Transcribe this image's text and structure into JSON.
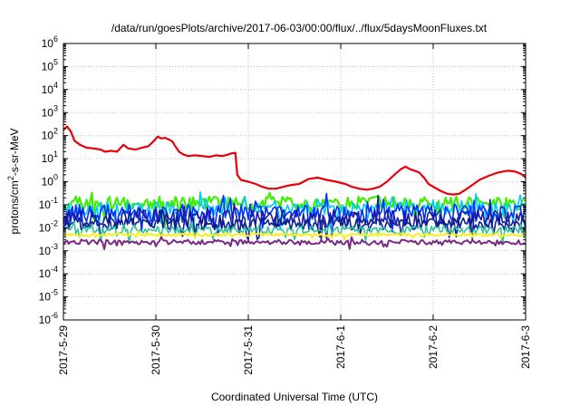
{
  "chart_data": {
    "type": "line",
    "title": "/data/run/goesPlots/archive/2017-06-03/00:00/flux/../flux/5daysMoonFluxes.txt",
    "xlabel": "Coordinated Universal Time (UTC)",
    "ylabel": "protons/cm²-s-sr-MeV",
    "ylabel_parts": {
      "pre": "protons/cm",
      "sup": "2",
      "post": "-s-sr-MeV"
    },
    "y_scale": "log",
    "ylim": [
      1e-06,
      1000000.0
    ],
    "y_ticks": [
      {
        "value": 1e-06,
        "base": "10",
        "exp": "-6"
      },
      {
        "value": 1e-05,
        "base": "10",
        "exp": "-5"
      },
      {
        "value": 0.0001,
        "base": "10",
        "exp": "-4"
      },
      {
        "value": 0.001,
        "base": "10",
        "exp": "-3"
      },
      {
        "value": 0.01,
        "base": "10",
        "exp": "-2"
      },
      {
        "value": 0.1,
        "base": "10",
        "exp": "-1"
      },
      {
        "value": 1.0,
        "base": "10",
        "exp": "0"
      },
      {
        "value": 10.0,
        "base": "10",
        "exp": "1"
      },
      {
        "value": 100.0,
        "base": "10",
        "exp": "2"
      },
      {
        "value": 1000.0,
        "base": "10",
        "exp": "3"
      },
      {
        "value": 10000.0,
        "base": "10",
        "exp": "4"
      },
      {
        "value": 100000.0,
        "base": "10",
        "exp": "5"
      },
      {
        "value": 1000000.0,
        "base": "10",
        "exp": "6"
      }
    ],
    "xlim": [
      "2017-05-29",
      "2017-06-03"
    ],
    "x_ticks": [
      "2017-5-29",
      "2017-5-30",
      "2017-5-31",
      "2017-6-1",
      "2017-6-2",
      "2017-6-3"
    ],
    "grid": true,
    "legend": "none",
    "series": [
      {
        "color": "#e8000b",
        "line_width": 2.2,
        "points": [
          [
            0.0,
            180
          ],
          [
            0.04,
            250
          ],
          [
            0.08,
            150
          ],
          [
            0.12,
            60
          ],
          [
            0.18,
            40
          ],
          [
            0.25,
            30
          ],
          [
            0.32,
            28
          ],
          [
            0.4,
            25
          ],
          [
            0.45,
            20
          ],
          [
            0.52,
            22
          ],
          [
            0.58,
            20
          ],
          [
            0.65,
            40
          ],
          [
            0.7,
            28
          ],
          [
            0.78,
            25
          ],
          [
            0.85,
            30
          ],
          [
            0.92,
            35
          ],
          [
            0.98,
            60
          ],
          [
            1.02,
            90
          ],
          [
            1.06,
            75
          ],
          [
            1.1,
            80
          ],
          [
            1.15,
            65
          ],
          [
            1.18,
            55
          ],
          [
            1.2,
            40
          ],
          [
            1.25,
            20
          ],
          [
            1.3,
            15
          ],
          [
            1.35,
            13
          ],
          [
            1.42,
            14
          ],
          [
            1.5,
            13
          ],
          [
            1.58,
            12
          ],
          [
            1.65,
            14
          ],
          [
            1.72,
            13
          ],
          [
            1.78,
            15
          ],
          [
            1.82,
            17
          ],
          [
            1.86,
            18
          ],
          [
            1.88,
            2
          ],
          [
            1.92,
            1.2
          ],
          [
            2.0,
            1.0
          ],
          [
            2.08,
            0.8
          ],
          [
            2.15,
            0.6
          ],
          [
            2.22,
            0.5
          ],
          [
            2.3,
            0.5
          ],
          [
            2.38,
            0.6
          ],
          [
            2.45,
            0.7
          ],
          [
            2.55,
            0.8
          ],
          [
            2.65,
            1.3
          ],
          [
            2.75,
            1.5
          ],
          [
            2.85,
            1.2
          ],
          [
            2.95,
            1.0
          ],
          [
            3.05,
            0.8
          ],
          [
            3.12,
            0.6
          ],
          [
            3.2,
            0.5
          ],
          [
            3.28,
            0.45
          ],
          [
            3.35,
            0.5
          ],
          [
            3.42,
            0.6
          ],
          [
            3.5,
            1.0
          ],
          [
            3.58,
            2.0
          ],
          [
            3.65,
            3.5
          ],
          [
            3.7,
            4.5
          ],
          [
            3.75,
            3.5
          ],
          [
            3.8,
            3.0
          ],
          [
            3.85,
            2.5
          ],
          [
            3.9,
            1.5
          ],
          [
            3.95,
            0.8
          ],
          [
            4.0,
            0.6
          ],
          [
            4.08,
            0.4
          ],
          [
            4.15,
            0.3
          ],
          [
            4.22,
            0.28
          ],
          [
            4.28,
            0.3
          ],
          [
            4.35,
            0.45
          ],
          [
            4.42,
            0.7
          ],
          [
            4.5,
            1.2
          ],
          [
            4.6,
            1.8
          ],
          [
            4.7,
            2.5
          ],
          [
            4.8,
            3.0
          ],
          [
            4.88,
            2.8
          ],
          [
            4.95,
            2.2
          ],
          [
            5.0,
            1.5
          ]
        ]
      },
      {
        "color": "#3df000",
        "line_width": 2.2,
        "base": 0.12,
        "amp": 0.55,
        "seed": 11
      },
      {
        "color": "#00c8ff",
        "line_width": 1.6,
        "base": 0.07,
        "amp": 0.55,
        "seed": 23
      },
      {
        "color": "#0030ff",
        "line_width": 1.6,
        "base": 0.045,
        "amp": 0.75,
        "seed": 37
      },
      {
        "color": "#1a1aa0",
        "line_width": 1.6,
        "base": 0.025,
        "amp": 0.8,
        "seed": 53
      },
      {
        "color": "#0a2090",
        "line_width": 1.6,
        "base": 0.015,
        "amp": 0.55,
        "seed": 71
      },
      {
        "color": "#2ec4a0",
        "line_width": 1.6,
        "base": 0.008,
        "amp": 0.35,
        "seed": 89
      },
      {
        "color": "#f5ef20",
        "line_width": 2.0,
        "base": 0.005,
        "amp": 0.12,
        "seed": 97
      },
      {
        "color": "#7a2a82",
        "line_width": 2.0,
        "base": 0.0024,
        "amp": 0.2,
        "seed": 131
      }
    ]
  }
}
